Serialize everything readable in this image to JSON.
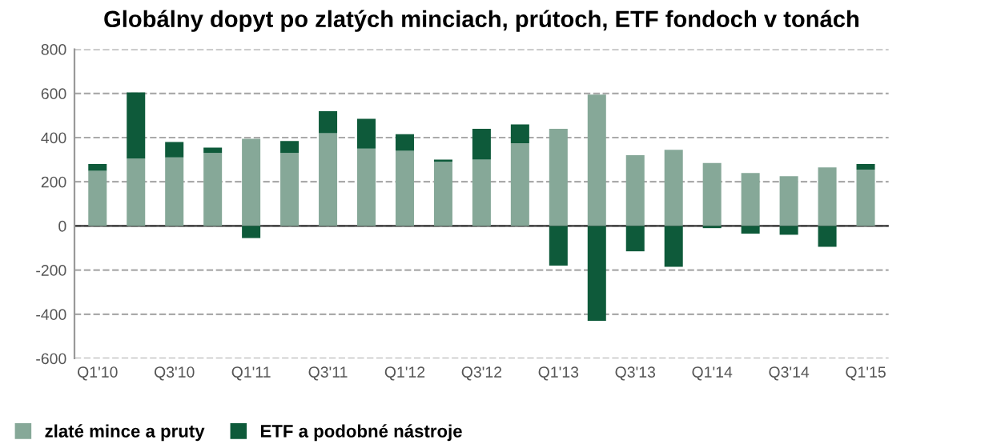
{
  "chart_data": {
    "type": "bar",
    "stacked": true,
    "title": "Globálny dopyt po zlatých minciach, prútoch, ETF fondoch v tonách",
    "categories": [
      "Q1'10",
      null,
      "Q3'10",
      null,
      "Q1'11",
      null,
      "Q3'11",
      null,
      "Q1'12",
      null,
      "Q3'12",
      null,
      "Q1'13",
      null,
      "Q3'13",
      null,
      "Q1'14",
      null,
      "Q3'14",
      null,
      "Q1'15"
    ],
    "series": [
      {
        "name": "zlaté mince a pruty",
        "color": "#86a898",
        "values": [
          250,
          305,
          310,
          330,
          395,
          330,
          420,
          350,
          340,
          290,
          300,
          375,
          440,
          595,
          320,
          345,
          285,
          240,
          225,
          265,
          255
        ]
      },
      {
        "name": "ETF a podobné nástroje",
        "color": "#0e5a3a",
        "values": [
          30,
          300,
          70,
          25,
          -55,
          55,
          100,
          135,
          75,
          10,
          140,
          85,
          -180,
          -430,
          -115,
          -185,
          -10,
          -35,
          -40,
          -95,
          25
        ]
      }
    ],
    "ylim": [
      -600,
      800
    ],
    "yticks": [
      -600,
      -400,
      -200,
      0,
      200,
      400,
      600,
      800
    ],
    "grid": "y",
    "legend": "bottom left"
  }
}
